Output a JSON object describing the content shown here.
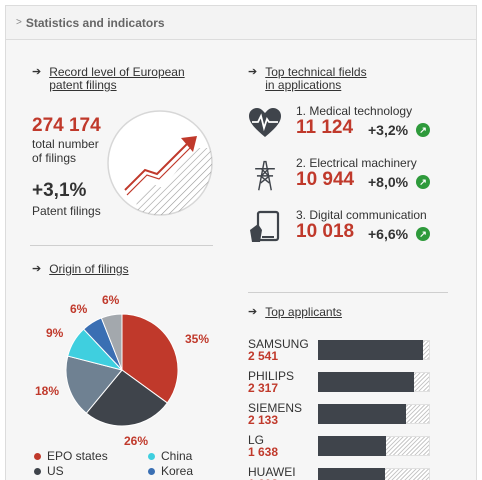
{
  "header": {
    "chevron": ">",
    "title": "Statistics and indicators"
  },
  "record": {
    "arrow": "➔",
    "title_line1": "Record level of European",
    "title_line2": "patent filings",
    "total_value": "274 174",
    "total_label_line1": "total number",
    "total_label_line2": "of filings",
    "growth_value": "+3,1%",
    "growth_label": "Patent filings"
  },
  "fields": {
    "arrow": "➔",
    "title_line1": "Top technical fields",
    "title_line2": "in applications",
    "items": [
      {
        "label": "1. Medical technology",
        "value": "11 124",
        "pct": "+3,2%",
        "icon": "heart-ecg-icon"
      },
      {
        "label": "2. Electrical machinery",
        "value": "10 944",
        "pct": "+8,0%",
        "icon": "power-pylon-icon"
      },
      {
        "label": "3. Digital communication",
        "value": "10 018",
        "pct": "+6,6%",
        "icon": "mobile-device-icon"
      }
    ],
    "up_glyph": "↗"
  },
  "origin": {
    "arrow": "➔",
    "title": "Origin of filings",
    "labels": {
      "epo": "35%",
      "us": "26%",
      "japan": "18%",
      "china": "9%",
      "korea": "6%",
      "other": "6%"
    },
    "legend": [
      {
        "label": "EPO states",
        "color": "#c0392b"
      },
      {
        "label": "China",
        "color": "#3fcfdf"
      },
      {
        "label": "US",
        "color": "#3f444b"
      },
      {
        "label": "Korea",
        "color": "#3a6fb3"
      }
    ]
  },
  "chart_data": {
    "type": "pie",
    "slices": [
      {
        "label": "EPO states",
        "value": 35,
        "color": "#c0392b"
      },
      {
        "label": "US",
        "value": 26,
        "color": "#3f444b"
      },
      {
        "label": "",
        "value": 18,
        "color": "#6f8192"
      },
      {
        "label": "China",
        "value": 9,
        "color": "#3fcfdf"
      },
      {
        "label": "Korea",
        "value": 6,
        "color": "#3a6fb3"
      },
      {
        "label": "",
        "value": 6,
        "color": "#a3a8ad"
      }
    ]
  },
  "applicants": {
    "arrow": "➔",
    "title": "Top applicants",
    "max": 2700,
    "items": [
      {
        "name": "SAMSUNG",
        "value": "2 541",
        "n": 2541
      },
      {
        "name": "PHILIPS",
        "value": "2 317",
        "n": 2317
      },
      {
        "name": "SIEMENS",
        "value": "2 133",
        "n": 2133
      },
      {
        "name": "LG",
        "value": "1 638",
        "n": 1638
      },
      {
        "name": "HUAWEI",
        "value": "1 608",
        "n": 1608
      }
    ]
  }
}
